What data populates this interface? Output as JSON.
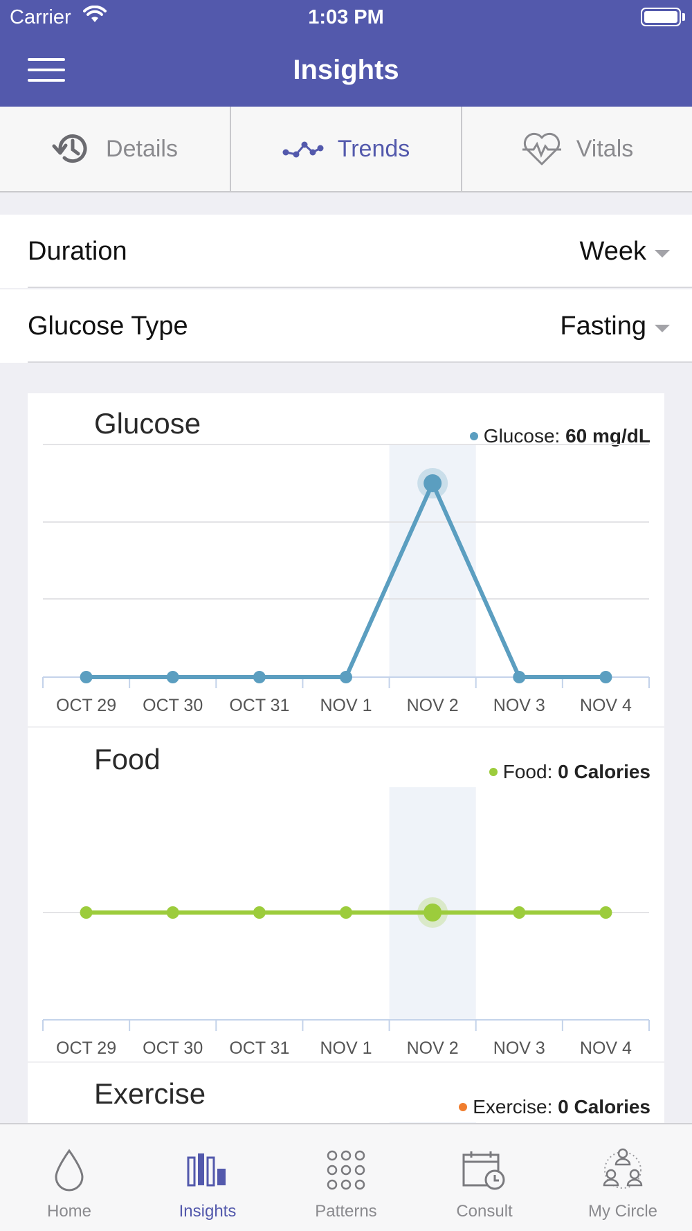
{
  "status_bar": {
    "carrier": "Carrier",
    "time": "1:03 PM"
  },
  "header": {
    "title": "Insights"
  },
  "tabs": [
    {
      "label": "Details",
      "icon": "history-icon",
      "active": false
    },
    {
      "label": "Trends",
      "icon": "trend-line-icon",
      "active": true
    },
    {
      "label": "Vitals",
      "icon": "heart-pulse-icon",
      "active": false
    }
  ],
  "filters": {
    "duration": {
      "label": "Duration",
      "value": "Week"
    },
    "glucose_type": {
      "label": "Glucose Type",
      "value": "Fasting"
    }
  },
  "charts": {
    "glucose": {
      "title": "Glucose",
      "legend_name": "Glucose:",
      "legend_value": "60 mg/dL",
      "color": "#5b9ec0"
    },
    "food": {
      "title": "Food",
      "legend_name": "Food:",
      "legend_value": "0 Calories",
      "color": "#9ccc3c"
    },
    "exercise": {
      "title": "Exercise",
      "legend_name": "Exercise:",
      "legend_value": "0 Calories",
      "color": "#f07d2e"
    }
  },
  "chart_data": [
    {
      "type": "line",
      "title": "Glucose",
      "categories": [
        "OCT 29",
        "OCT 30",
        "OCT 31",
        "NOV 1",
        "NOV 2",
        "NOV 3",
        "NOV 4"
      ],
      "series": [
        {
          "name": "Glucose",
          "values": [
            0,
            0,
            0,
            0,
            60,
            0,
            0
          ]
        }
      ],
      "ylim": [
        0,
        72
      ],
      "highlight_index": 4,
      "grid": true
    },
    {
      "type": "line",
      "title": "Food",
      "categories": [
        "OCT 29",
        "OCT 30",
        "OCT 31",
        "NOV 1",
        "NOV 2",
        "NOV 3",
        "NOV 4"
      ],
      "series": [
        {
          "name": "Food",
          "values": [
            0,
            0,
            0,
            0,
            0,
            0,
            0
          ]
        }
      ],
      "highlight_index": 4,
      "grid": true
    }
  ],
  "tabbar": [
    {
      "label": "Home",
      "icon": "drop-icon",
      "active": false
    },
    {
      "label": "Insights",
      "icon": "bar-chart-icon",
      "active": true
    },
    {
      "label": "Patterns",
      "icon": "dots-grid-icon",
      "active": false
    },
    {
      "label": "Consult",
      "icon": "calendar-clock-icon",
      "active": false
    },
    {
      "label": "My Circle",
      "icon": "people-circle-icon",
      "active": false
    }
  ]
}
